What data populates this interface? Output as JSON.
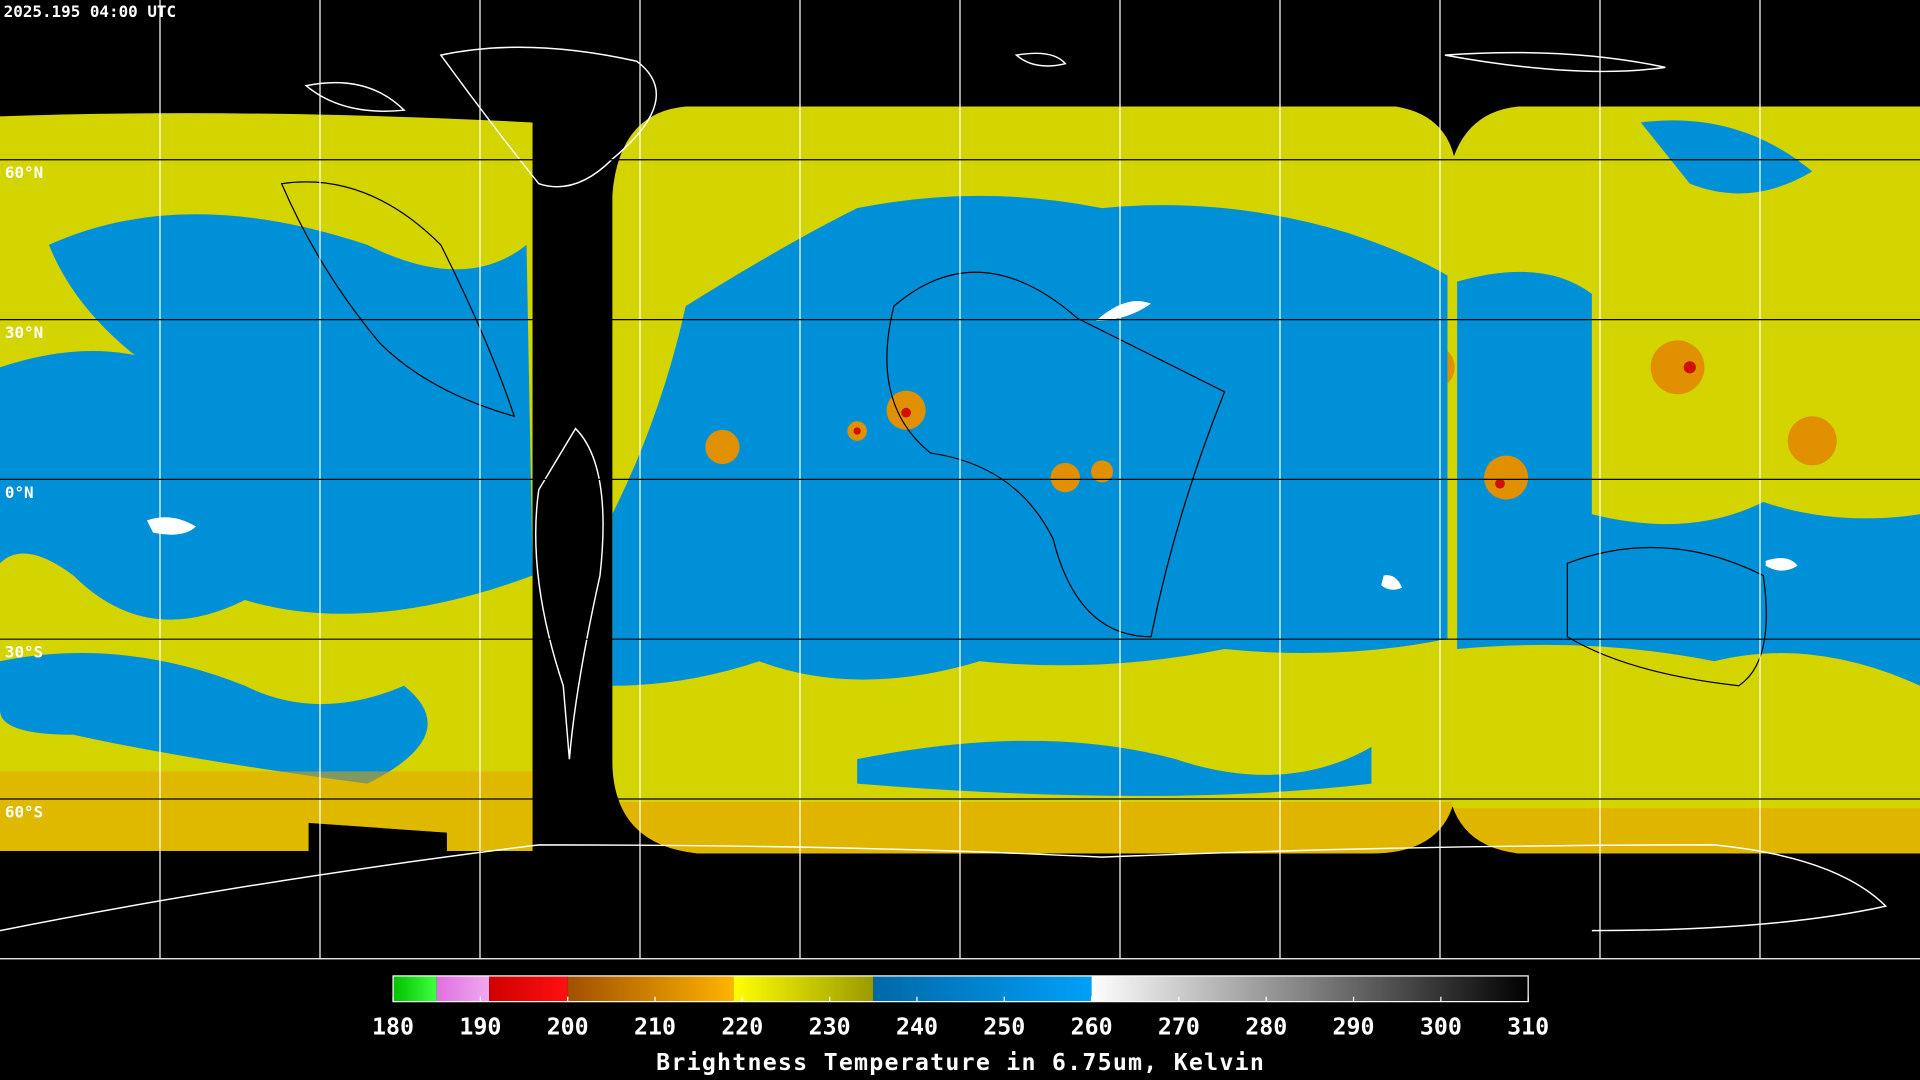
{
  "timestamp": "2025.195 04:00 UTC",
  "lat_labels": [
    "60°N",
    "30°N",
    "0°N",
    "30°S",
    "60°S"
  ],
  "colorbar": {
    "title": "Brightness Temperature in 6.75um, Kelvin",
    "range": [
      180,
      310
    ],
    "ticks": [
      180,
      190,
      200,
      210,
      220,
      230,
      240,
      250,
      260,
      270,
      280,
      290,
      300,
      310
    ],
    "segments": [
      {
        "from": 180,
        "to": 185,
        "colors": [
          "#00c000",
          "#40ff40"
        ]
      },
      {
        "from": 185,
        "to": 191,
        "colors": [
          "#e070e0",
          "#f0a8f0"
        ]
      },
      {
        "from": 191,
        "to": 200,
        "colors": [
          "#d00000",
          "#ff1010"
        ]
      },
      {
        "from": 200,
        "to": 219,
        "colors": [
          "#a05000",
          "#ffb400"
        ]
      },
      {
        "from": 219,
        "to": 235,
        "colors": [
          "#ffff00",
          "#9a9a00"
        ]
      },
      {
        "from": 235,
        "to": 260,
        "colors": [
          "#0068a8",
          "#00a0f8"
        ]
      },
      {
        "from": 260,
        "to": 310,
        "colors": [
          "#ffffff",
          "#000000"
        ]
      }
    ]
  }
}
